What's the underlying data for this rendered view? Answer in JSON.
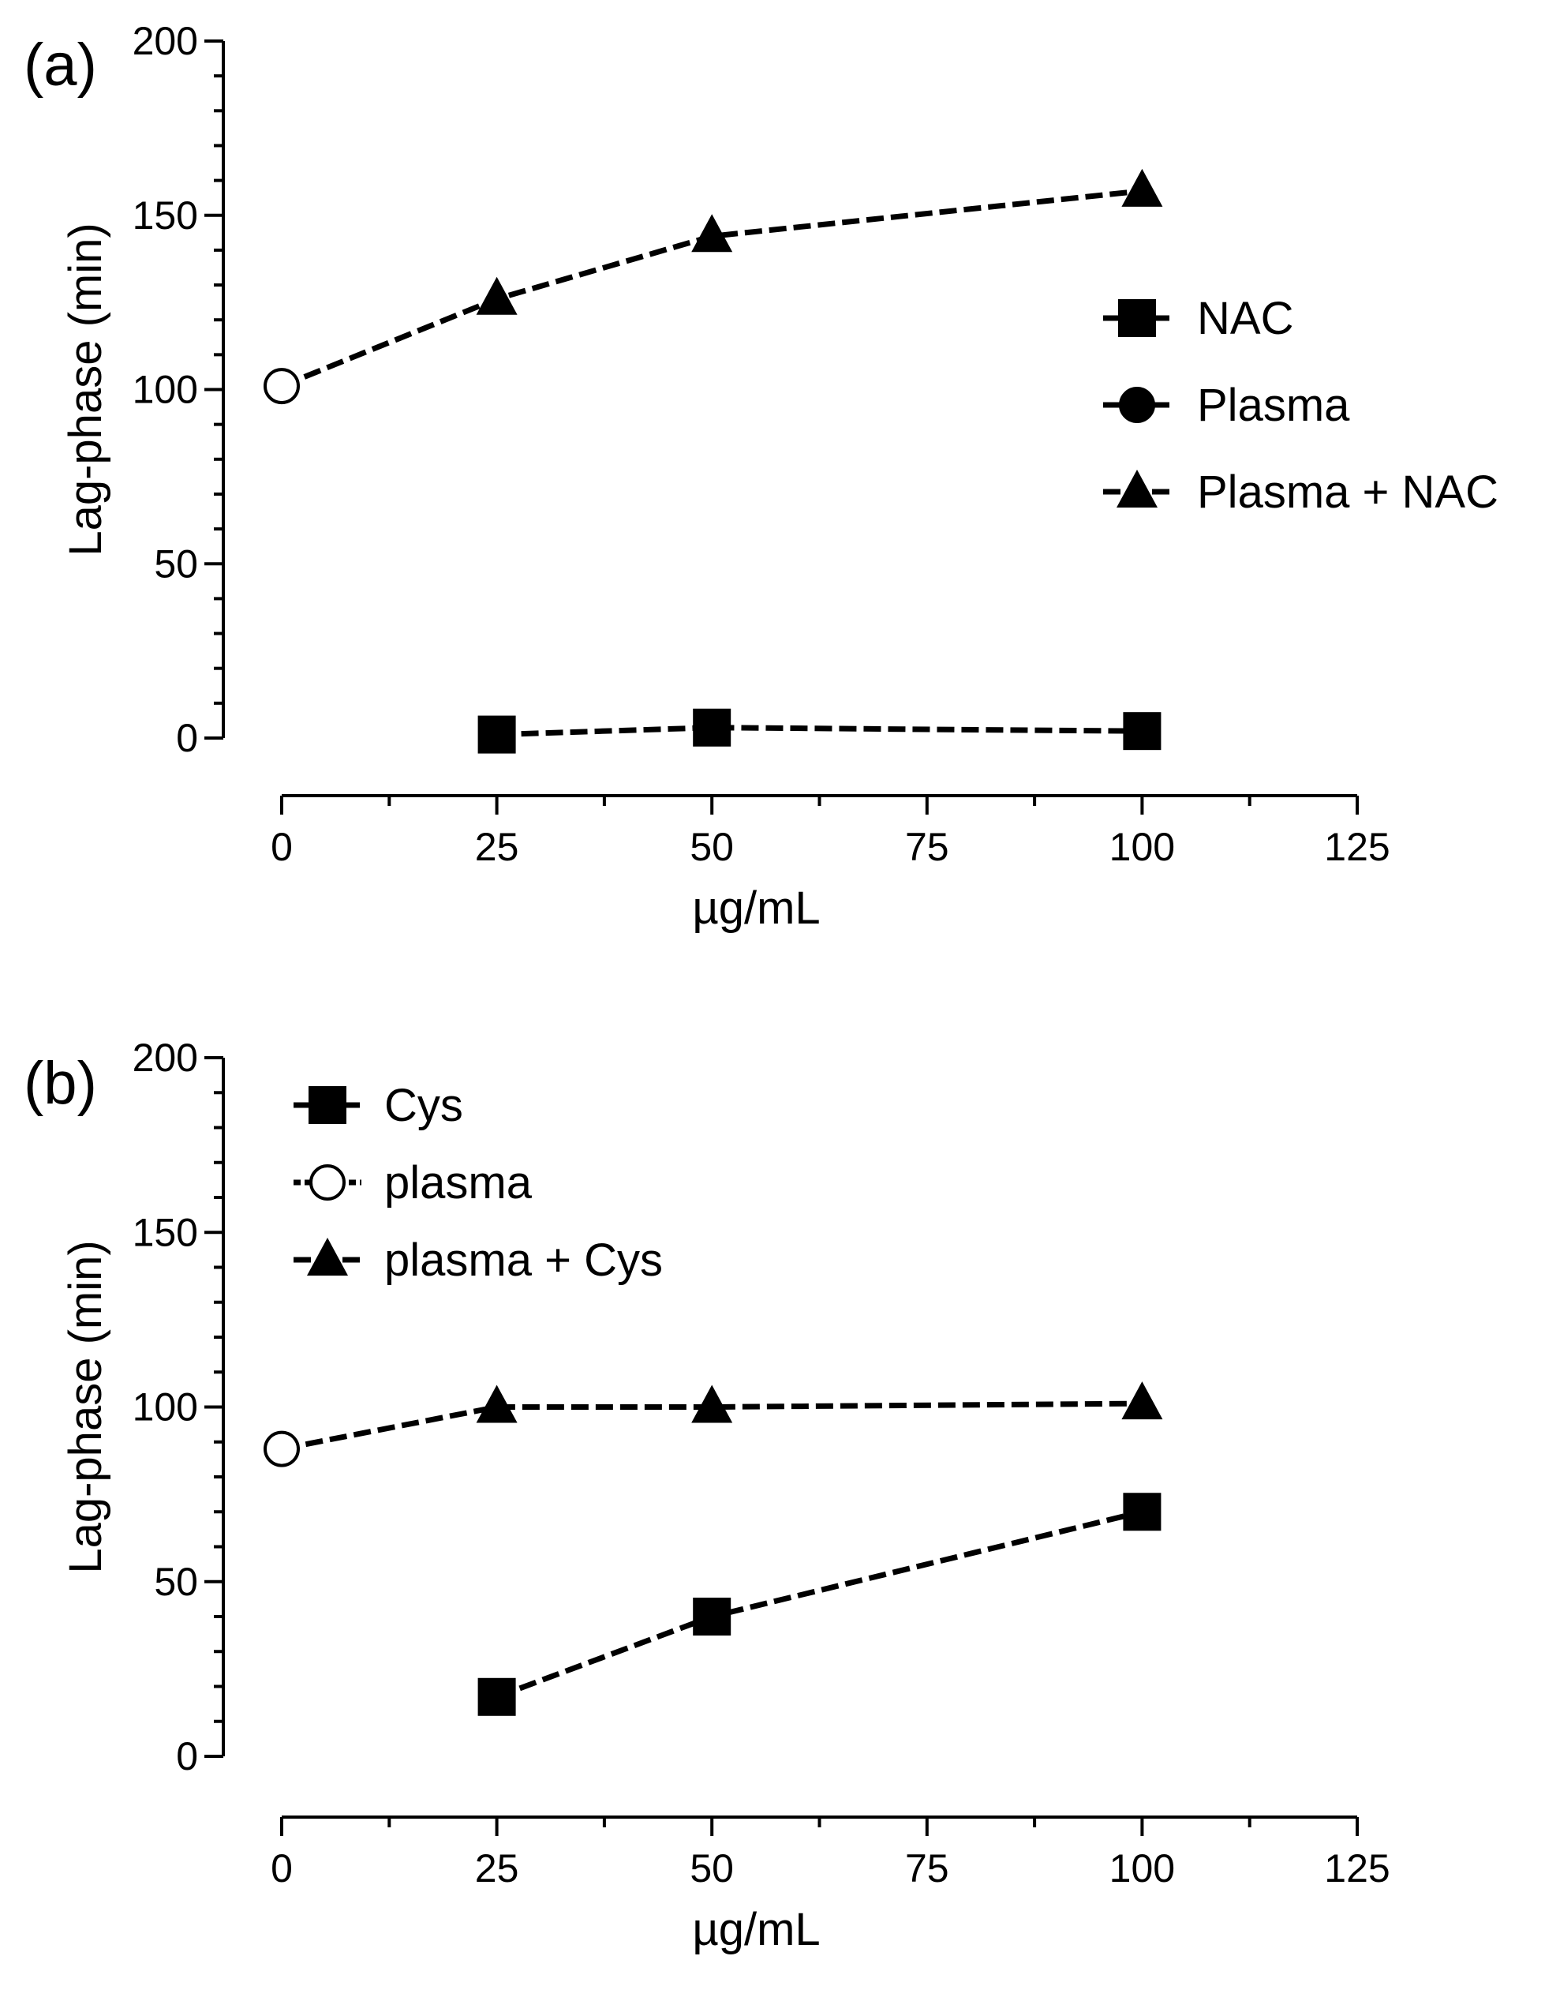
{
  "chart_data": [
    {
      "type": "line",
      "panel_label": "(a)",
      "xlabel": "µg/mL",
      "ylabel": "Lag-phase (min)",
      "xlim": [
        0,
        125
      ],
      "ylim": [
        0,
        200
      ],
      "xticks": [
        0,
        25,
        50,
        75,
        100,
        125
      ],
      "yticks": [
        0,
        50,
        100,
        150,
        200
      ],
      "legend_position": "right",
      "series": [
        {
          "name": "NAC",
          "marker": "square",
          "filled": true,
          "line": "dashed",
          "x": [
            25,
            50,
            100
          ],
          "y": [
            1,
            3,
            2
          ]
        },
        {
          "name": "Plasma",
          "marker": "circle",
          "filled": false,
          "legend_filled": true,
          "line": "dashed",
          "x": [
            0
          ],
          "y": [
            101
          ]
        },
        {
          "name": "Plasma + NAC",
          "marker": "triangle",
          "filled": true,
          "line": "dashed",
          "x": [
            0,
            25,
            50,
            100
          ],
          "y": [
            101,
            126,
            144,
            157
          ]
        }
      ]
    },
    {
      "type": "line",
      "panel_label": "(b)",
      "xlabel": "µg/mL",
      "ylabel": "Lag-phase (min)",
      "xlim": [
        0,
        125
      ],
      "ylim": [
        0,
        200
      ],
      "xticks": [
        0,
        25,
        50,
        75,
        100,
        125
      ],
      "yticks": [
        0,
        50,
        100,
        150,
        200
      ],
      "legend_position": "top-left",
      "series": [
        {
          "name": "Cys",
          "marker": "square",
          "filled": true,
          "line": "dashed",
          "x": [
            25,
            50,
            100
          ],
          "y": [
            17,
            40,
            70
          ]
        },
        {
          "name": "plasma",
          "marker": "circle",
          "filled": false,
          "legend_filled": false,
          "line": "dotted",
          "x": [
            0
          ],
          "y": [
            88
          ]
        },
        {
          "name": "plasma + Cys",
          "marker": "triangle",
          "filled": true,
          "line": "dashed",
          "x": [
            0,
            25,
            50,
            100
          ],
          "y": [
            88,
            100,
            100,
            101
          ]
        }
      ]
    }
  ]
}
